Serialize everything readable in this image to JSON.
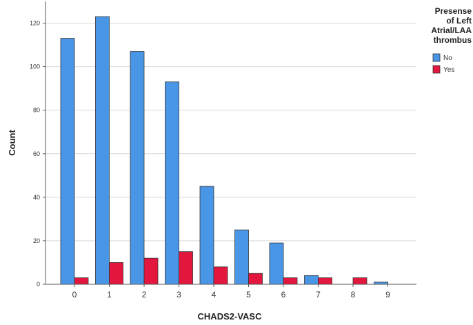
{
  "chart_data": {
    "type": "bar",
    "categories": [
      "0",
      "1",
      "2",
      "3",
      "4",
      "5",
      "6",
      "7",
      "8",
      "9"
    ],
    "series": [
      {
        "name": "No",
        "values": [
          113,
          123,
          107,
          93,
          45,
          25,
          19,
          4,
          0,
          1
        ],
        "color": "#4a96e6"
      },
      {
        "name": "Yes",
        "values": [
          3,
          10,
          12,
          15,
          8,
          5,
          3,
          3,
          3,
          0
        ],
        "color": "#e3173e"
      }
    ],
    "xlabel": "CHADS2-VASC",
    "ylabel": "Count",
    "ylim": [
      0,
      130
    ],
    "yticks": [
      0,
      20,
      40,
      60,
      80,
      100,
      120
    ],
    "grid": true,
    "legend": {
      "title_lines": [
        "Presense",
        "of Left",
        "Atrial/LAA",
        "thrombus"
      ],
      "placement": "top-right"
    }
  }
}
